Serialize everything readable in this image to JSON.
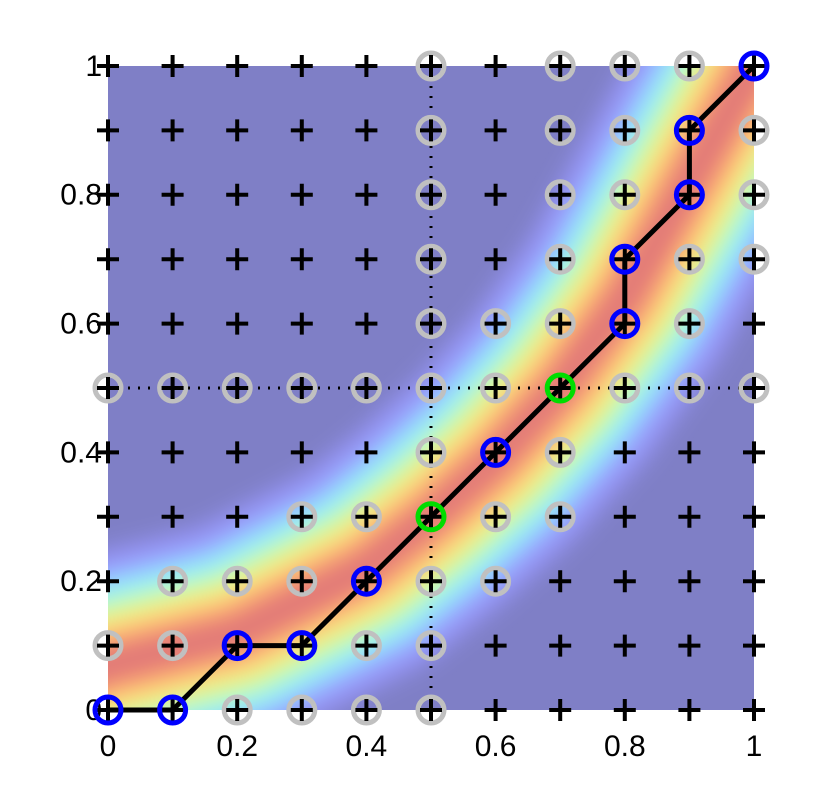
{
  "chart_data": {
    "type": "scatter",
    "xlim": [
      0,
      1
    ],
    "ylim": [
      0,
      1
    ],
    "xticks": [
      0,
      0.2,
      0.4,
      0.6,
      0.8,
      1
    ],
    "yticks": [
      0,
      0.2,
      0.4,
      0.6,
      0.8,
      1
    ],
    "reference_lines": {
      "x": 0.5,
      "y": 0.5
    },
    "series": [
      {
        "marker": "plus",
        "color": "#000000",
        "x": [
          0,
          0.1,
          0.2,
          0.3,
          0.4,
          0.5,
          0.6,
          0.7,
          0.8,
          0.9,
          1,
          0,
          0.1,
          0.2,
          0.3,
          0.4,
          0.5,
          0.6,
          0.7,
          0.8,
          0.9,
          1,
          0,
          0.1,
          0.2,
          0.3,
          0.4,
          0.5,
          0.6,
          0.7,
          0.8,
          0.9,
          1,
          0,
          0.1,
          0.2,
          0.3,
          0.4,
          0.5,
          0.6,
          0.7,
          0.8,
          0.9,
          1,
          0,
          0.1,
          0.2,
          0.3,
          0.4,
          0.5,
          0.6,
          0.7,
          0.8,
          0.9,
          1,
          0,
          0.1,
          0.2,
          0.3,
          0.4,
          0.5,
          0.6,
          0.7,
          0.8,
          0.9,
          1,
          0,
          0.1,
          0.2,
          0.3,
          0.4,
          0.5,
          0.6,
          0.7,
          0.8,
          0.9,
          1,
          0,
          0.1,
          0.2,
          0.3,
          0.4,
          0.5,
          0.6,
          0.7,
          0.8,
          0.9,
          1,
          0,
          0.1,
          0.2,
          0.3,
          0.4,
          0.5,
          0.6,
          0.7,
          0.8,
          0.9,
          1,
          0,
          0.1,
          0.2,
          0.3,
          0.4,
          0.5,
          0.6,
          0.7,
          0.8,
          0.9,
          1,
          0,
          0.1,
          0.2,
          0.3,
          0.4,
          0.5,
          0.6,
          0.7,
          0.8,
          0.9,
          1
        ],
        "y": [
          0,
          0,
          0,
          0,
          0,
          0,
          0,
          0,
          0,
          0,
          0,
          0.1,
          0.1,
          0.1,
          0.1,
          0.1,
          0.1,
          0.1,
          0.1,
          0.1,
          0.1,
          0.1,
          0.2,
          0.2,
          0.2,
          0.2,
          0.2,
          0.2,
          0.2,
          0.2,
          0.2,
          0.2,
          0.2,
          0.3,
          0.3,
          0.3,
          0.3,
          0.3,
          0.3,
          0.3,
          0.3,
          0.3,
          0.3,
          0.3,
          0.4,
          0.4,
          0.4,
          0.4,
          0.4,
          0.4,
          0.4,
          0.4,
          0.4,
          0.4,
          0.4,
          0.5,
          0.5,
          0.5,
          0.5,
          0.5,
          0.5,
          0.5,
          0.5,
          0.5,
          0.5,
          0.5,
          0.6,
          0.6,
          0.6,
          0.6,
          0.6,
          0.6,
          0.6,
          0.6,
          0.6,
          0.6,
          0.6,
          0.7,
          0.7,
          0.7,
          0.7,
          0.7,
          0.7,
          0.7,
          0.7,
          0.7,
          0.7,
          0.7,
          0.8,
          0.8,
          0.8,
          0.8,
          0.8,
          0.8,
          0.8,
          0.8,
          0.8,
          0.8,
          0.8,
          0.9,
          0.9,
          0.9,
          0.9,
          0.9,
          0.9,
          0.9,
          0.9,
          0.9,
          0.9,
          0.9,
          1,
          1,
          1,
          1,
          1,
          1,
          1,
          1,
          1,
          1,
          1
        ]
      },
      {
        "marker": "circle",
        "color": "#c0c0c0",
        "x": [
          0.2,
          0.3,
          0.4,
          0.5,
          0,
          0.1,
          0.4,
          0.5,
          0.1,
          0.2,
          0.3,
          0.5,
          0.6,
          0.3,
          0.4,
          0.6,
          0.7,
          0.5,
          0.7,
          0,
          0.1,
          0.2,
          0.3,
          0.4,
          0.5,
          0.6,
          0.8,
          0.9,
          1,
          0.5,
          0.6,
          0.7,
          0.9,
          0.5,
          0.7,
          0.9,
          1,
          0.5,
          0.7,
          0.8,
          1,
          0.5,
          0.7,
          0.8,
          1,
          0.5,
          0.7,
          0.8,
          0.9
        ],
        "y": [
          0,
          0,
          0,
          0,
          0.1,
          0.1,
          0.1,
          0.1,
          0.2,
          0.2,
          0.2,
          0.2,
          0.2,
          0.3,
          0.3,
          0.3,
          0.3,
          0.4,
          0.4,
          0.5,
          0.5,
          0.5,
          0.5,
          0.5,
          0.5,
          0.5,
          0.5,
          0.5,
          0.5,
          0.6,
          0.6,
          0.6,
          0.6,
          0.7,
          0.7,
          0.7,
          0.7,
          0.8,
          0.8,
          0.8,
          0.8,
          0.9,
          0.9,
          0.9,
          0.9,
          1,
          1,
          1,
          1
        ]
      },
      {
        "marker": "line",
        "color": "#000000",
        "x": [
          0,
          0.1,
          0.2,
          0.3,
          0.4,
          0.5,
          0.6,
          0.7,
          0.8,
          0.8,
          0.9,
          0.9,
          1
        ],
        "y": [
          0,
          0,
          0.1,
          0.1,
          0.2,
          0.3,
          0.4,
          0.5,
          0.6,
          0.7,
          0.8,
          0.9,
          1
        ]
      },
      {
        "marker": "circle",
        "color": "#0000ff",
        "x": [
          0,
          0.1,
          0.2,
          0.3,
          0.4,
          0.6,
          0.8,
          0.8,
          0.9,
          0.9,
          1
        ],
        "y": [
          0,
          0,
          0.1,
          0.1,
          0.2,
          0.4,
          0.6,
          0.7,
          0.8,
          0.9,
          1
        ]
      },
      {
        "marker": "circle",
        "color": "#00dd00",
        "x": [
          0.5,
          0.7
        ],
        "y": [
          0.3,
          0.5
        ]
      }
    ]
  }
}
